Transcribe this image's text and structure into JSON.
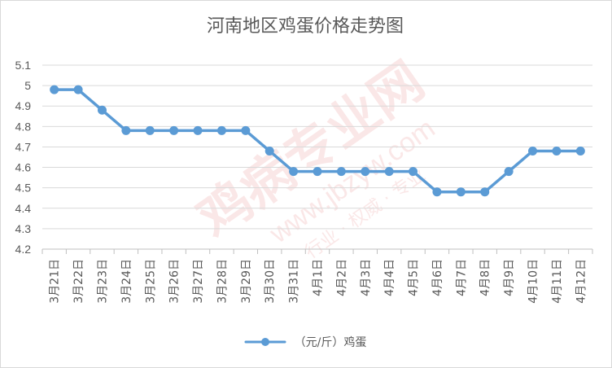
{
  "chart_data": {
    "type": "line",
    "title": "河南地区鸡蛋价格走势图",
    "categories": [
      "3月21日",
      "3月22日",
      "3月23日",
      "3月24日",
      "3月25日",
      "3月26日",
      "3月27日",
      "3月28日",
      "3月29日",
      "3月30日",
      "3月31日",
      "4月1日",
      "4月2日",
      "4月3日",
      "4月4日",
      "4月5日",
      "4月6日",
      "4月7日",
      "4月8日",
      "4月9日",
      "4月10日",
      "4月11日",
      "4月12日"
    ],
    "series": [
      {
        "name": "（元/斤）鸡蛋",
        "values": [
          4.98,
          4.98,
          4.88,
          4.78,
          4.78,
          4.78,
          4.78,
          4.78,
          4.78,
          4.68,
          4.58,
          4.58,
          4.58,
          4.58,
          4.58,
          4.58,
          4.48,
          4.48,
          4.48,
          4.58,
          4.68,
          4.68,
          4.68
        ]
      }
    ],
    "yticks": [
      "4.2",
      "4.3",
      "4.4",
      "4.5",
      "4.6",
      "4.7",
      "4.8",
      "4.9",
      "5",
      "5.1"
    ],
    "ylim": [
      4.2,
      5.1
    ],
    "grid": true,
    "legend_position": "bottom",
    "color": "#5b9bd5",
    "gridline_color": "#d9d9d9",
    "axis_text_color": "#595959"
  },
  "watermark": {
    "brand": "鸡病专业网",
    "url": "www.jbzyw.com",
    "slogan": "行业 · 权威 · 专业",
    "color": "#e05050"
  }
}
